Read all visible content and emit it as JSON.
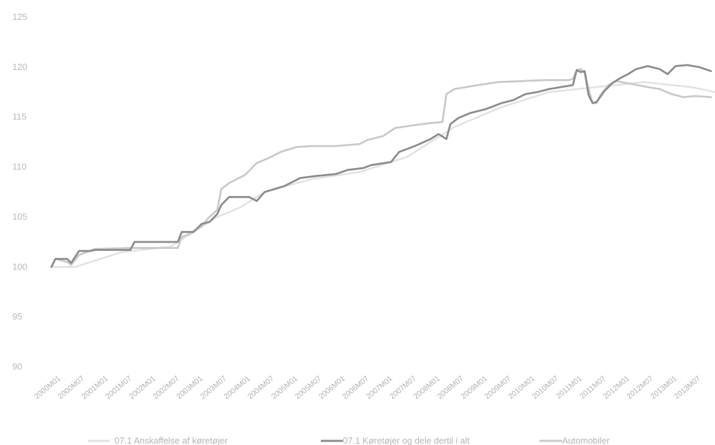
{
  "chart_data": {
    "type": "line",
    "title": "",
    "xlabel": "",
    "ylabel": "",
    "ylim": [
      90,
      125
    ],
    "yticks": [
      90,
      95,
      100,
      105,
      110,
      115,
      120,
      125
    ],
    "x_ticks": [
      "2000M01",
      "2000M07",
      "2001M01",
      "2001M07",
      "2002M01",
      "2002M07",
      "2003M01",
      "2003M07",
      "2004M01",
      "2004M07",
      "2005M01",
      "2005M07",
      "2006M01",
      "2006M07",
      "2007M01",
      "2007M07",
      "2008M01",
      "2008M07",
      "2009M01",
      "2009M07",
      "2010M01",
      "2010M07",
      "2011M01",
      "2011M07",
      "2012M01",
      "2012M07",
      "2013M01",
      "2013M07"
    ],
    "x_tick_labels": [
      "2000M01",
      "2000M07",
      "2001M01",
      "2001M07",
      "2002M01",
      "2002M07",
      "2003M01",
      "2003M07",
      "2004M01",
      "2004M07",
      "2005M01",
      "2005M07",
      "2006M01",
      "2006M07",
      "2007M01",
      "2007M07",
      "2008M01",
      "2008M07",
      "2009M01",
      "2009M07",
      "2010M01",
      "2010M07",
      "2011M01",
      "2011M07",
      "2012M01",
      "2012M07",
      "2013M01",
      "2013M07"
    ],
    "x_end": "2014M01",
    "grid": false,
    "legend_position": "bottom",
    "series": [
      {
        "name": "07.1 Anskaffelse af køretøjer",
        "color": "#e2e2e2",
        "points": [
          [
            "2000M01",
            100.0
          ],
          [
            "2000M03",
            100.0
          ],
          [
            "2000M07",
            100.0
          ],
          [
            "2001M07",
            101.5
          ],
          [
            "2002M07",
            102.0
          ],
          [
            "2003M01",
            103.5
          ],
          [
            "2003M07",
            105.0
          ],
          [
            "2004M01",
            106.0
          ],
          [
            "2004M07",
            107.5
          ],
          [
            "2005M07",
            108.8
          ],
          [
            "2006M07",
            109.5
          ],
          [
            "2007M07",
            111.0
          ],
          [
            "2008M07",
            114.0
          ],
          [
            "2009M07",
            116.0
          ],
          [
            "2010M07",
            117.5
          ],
          [
            "2011M07",
            118.0
          ],
          [
            "2012M07",
            118.5
          ],
          [
            "2013M07",
            118.0
          ],
          [
            "2014M01",
            117.5
          ]
        ]
      },
      {
        "name": "07.1 Køretøjer og dele dertil i alt",
        "color": "#8c8c8c",
        "points": [
          [
            "2000M01",
            100.0
          ],
          [
            "2000M02",
            100.8
          ],
          [
            "2000M05",
            100.8
          ],
          [
            "2000M06",
            100.4
          ],
          [
            "2000M08",
            101.6
          ],
          [
            "2000M11",
            101.6
          ],
          [
            "2000M12",
            101.7
          ],
          [
            "2001M09",
            101.7
          ],
          [
            "2001M10",
            102.5
          ],
          [
            "2002M09",
            102.5
          ],
          [
            "2002M10",
            103.5
          ],
          [
            "2003M01",
            103.5
          ],
          [
            "2003M03",
            104.3
          ],
          [
            "2003M05",
            104.5
          ],
          [
            "2003M07",
            105.3
          ],
          [
            "2003M08",
            106.2
          ],
          [
            "2003M10",
            107.0
          ],
          [
            "2004M03",
            107.0
          ],
          [
            "2004M05",
            106.6
          ],
          [
            "2004M07",
            107.5
          ],
          [
            "2004M12",
            108.1
          ],
          [
            "2005M04",
            108.9
          ],
          [
            "2005M08",
            109.1
          ],
          [
            "2006M01",
            109.3
          ],
          [
            "2006M04",
            109.7
          ],
          [
            "2006M08",
            109.9
          ],
          [
            "2006M10",
            110.2
          ],
          [
            "2007M03",
            110.5
          ],
          [
            "2007M05",
            111.5
          ],
          [
            "2007M09",
            112.1
          ],
          [
            "2008M01",
            112.8
          ],
          [
            "2008M03",
            113.3
          ],
          [
            "2008M05",
            112.8
          ],
          [
            "2008M06",
            114.3
          ],
          [
            "2008M08",
            114.9
          ],
          [
            "2008M11",
            115.4
          ],
          [
            "2009M03",
            115.8
          ],
          [
            "2009M07",
            116.4
          ],
          [
            "2009M10",
            116.7
          ],
          [
            "2010M01",
            117.3
          ],
          [
            "2010M04",
            117.5
          ],
          [
            "2010M07",
            117.8
          ],
          [
            "2010M10",
            118.0
          ],
          [
            "2011M01",
            118.2
          ],
          [
            "2011M02",
            119.7
          ],
          [
            "2011M03",
            119.5
          ],
          [
            "2011M04",
            119.6
          ],
          [
            "2011M05",
            117.2
          ],
          [
            "2011M06",
            116.4
          ],
          [
            "2011M07",
            116.5
          ],
          [
            "2011M09",
            117.6
          ],
          [
            "2011M11",
            118.4
          ],
          [
            "2012M01",
            118.9
          ],
          [
            "2012M03",
            119.3
          ],
          [
            "2012M05",
            119.8
          ],
          [
            "2012M08",
            120.1
          ],
          [
            "2012M11",
            119.8
          ],
          [
            "2013M01",
            119.3
          ],
          [
            "2013M03",
            120.1
          ],
          [
            "2013M06",
            120.2
          ],
          [
            "2013M09",
            120.0
          ],
          [
            "2013M12",
            119.6
          ]
        ]
      },
      {
        "name": "Automobiler",
        "color": "#c9c9c9",
        "points": [
          [
            "2000M01",
            100.0
          ],
          [
            "2000M02",
            100.8
          ],
          [
            "2000M05",
            100.5
          ],
          [
            "2000M06",
            100.2
          ],
          [
            "2000M08",
            101.2
          ],
          [
            "2000M12",
            101.8
          ],
          [
            "2001M09",
            101.9
          ],
          [
            "2002M09",
            101.9
          ],
          [
            "2002M10",
            103.0
          ],
          [
            "2002M12",
            103.3
          ],
          [
            "2003M03",
            104.1
          ],
          [
            "2003M05",
            105.0
          ],
          [
            "2003M07",
            105.7
          ],
          [
            "2003M08",
            107.8
          ],
          [
            "2003M10",
            108.4
          ],
          [
            "2004M02",
            109.2
          ],
          [
            "2004M05",
            110.4
          ],
          [
            "2004M08",
            110.9
          ],
          [
            "2004M11",
            111.5
          ],
          [
            "2005M03",
            112.0
          ],
          [
            "2005M07",
            112.1
          ],
          [
            "2006M01",
            112.1
          ],
          [
            "2006M07",
            112.3
          ],
          [
            "2006M09",
            112.7
          ],
          [
            "2007M01",
            113.1
          ],
          [
            "2007M04",
            113.9
          ],
          [
            "2007M09",
            114.2
          ],
          [
            "2008M01",
            114.4
          ],
          [
            "2008M04",
            114.5
          ],
          [
            "2008M05",
            117.3
          ],
          [
            "2008M07",
            117.8
          ],
          [
            "2008M10",
            118.0
          ],
          [
            "2009M01",
            118.2
          ],
          [
            "2009M06",
            118.5
          ],
          [
            "2009M12",
            118.6
          ],
          [
            "2010M06",
            118.7
          ],
          [
            "2010M12",
            118.7
          ],
          [
            "2011M01",
            118.8
          ],
          [
            "2011M02",
            119.7
          ],
          [
            "2011M03",
            119.8
          ],
          [
            "2011M04",
            119.4
          ],
          [
            "2011M05",
            117.8
          ],
          [
            "2011M06",
            116.4
          ],
          [
            "2011M07",
            116.4
          ],
          [
            "2011M08",
            117.2
          ],
          [
            "2011M10",
            118.2
          ],
          [
            "2011M12",
            118.6
          ],
          [
            "2012M04",
            118.3
          ],
          [
            "2012M08",
            118.0
          ],
          [
            "2012M11",
            117.8
          ],
          [
            "2013M02",
            117.3
          ],
          [
            "2013M05",
            117.0
          ],
          [
            "2013M08",
            117.1
          ],
          [
            "2013M12",
            117.0
          ]
        ]
      }
    ]
  },
  "legend": {
    "items": [
      {
        "label": "07.1 Anskaffelse af køretøjer",
        "color": "#e2e2e2"
      },
      {
        "label": "07.1 Køretøjer og dele dertil i alt",
        "color": "#8c8c8c"
      },
      {
        "label": "Automobiler",
        "color": "#c9c9c9"
      }
    ]
  }
}
